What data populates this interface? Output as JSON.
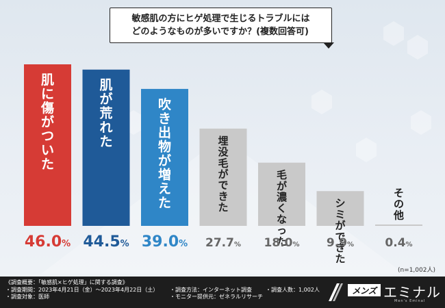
{
  "question": {
    "line1": "敏感肌の方にヒゲ処理で生じるトラブルには",
    "line2": "どのようなものが多いですか？(複数回答可)"
  },
  "sample_size": "(n=1,002人)",
  "colors": {
    "red": "#d63b35",
    "dark_blue": "#1f5a98",
    "mid_blue": "#2f86c7",
    "gray": "#c9c9c9",
    "label_red": "#d63b35",
    "label_blue": "#1f5a98",
    "label_gray": "#666666"
  },
  "chart_data": {
    "type": "bar",
    "categories": [
      "肌に傷がついた",
      "肌が荒れた",
      "吹き出物が増えた",
      "埋没毛ができた",
      "毛が濃くなった",
      "シミができた",
      "その他"
    ],
    "values": [
      46.0,
      44.5,
      39.0,
      27.7,
      18.0,
      9.9,
      0.4
    ],
    "value_labels": [
      "46.0%",
      "44.5%",
      "39.0%",
      "27.7%",
      "18.0%",
      "9.9%",
      "0.4%"
    ],
    "bar_colors": [
      "#d63b35",
      "#1f5a98",
      "#2f86c7",
      "#c9c9c9",
      "#c9c9c9",
      "#c9c9c9",
      "#c9c9c9"
    ],
    "label_colors": [
      "#d63b35",
      "#1f5a98",
      "#2f86c7",
      "#666666",
      "#666666",
      "#666666",
      "#666666"
    ],
    "ylim": [
      0,
      46
    ],
    "unit": "%"
  },
  "footer": {
    "survey_outline": "《調査概要：「敏感肌×ヒゲ処理」に関する調査》",
    "period": "・調査期間：2023年4月21日（金）〜2023年4月22日（土）",
    "method": "・調査方法：インターネット調査",
    "count": "・調査人数：1,002人",
    "target": "・調査対象：医師",
    "monitor": "・モニター提供元：ゼネラルリサーチ"
  },
  "brand": {
    "box_text": "メンズ",
    "main_text": "エミナル",
    "sub_text": "Men's Eminal"
  }
}
